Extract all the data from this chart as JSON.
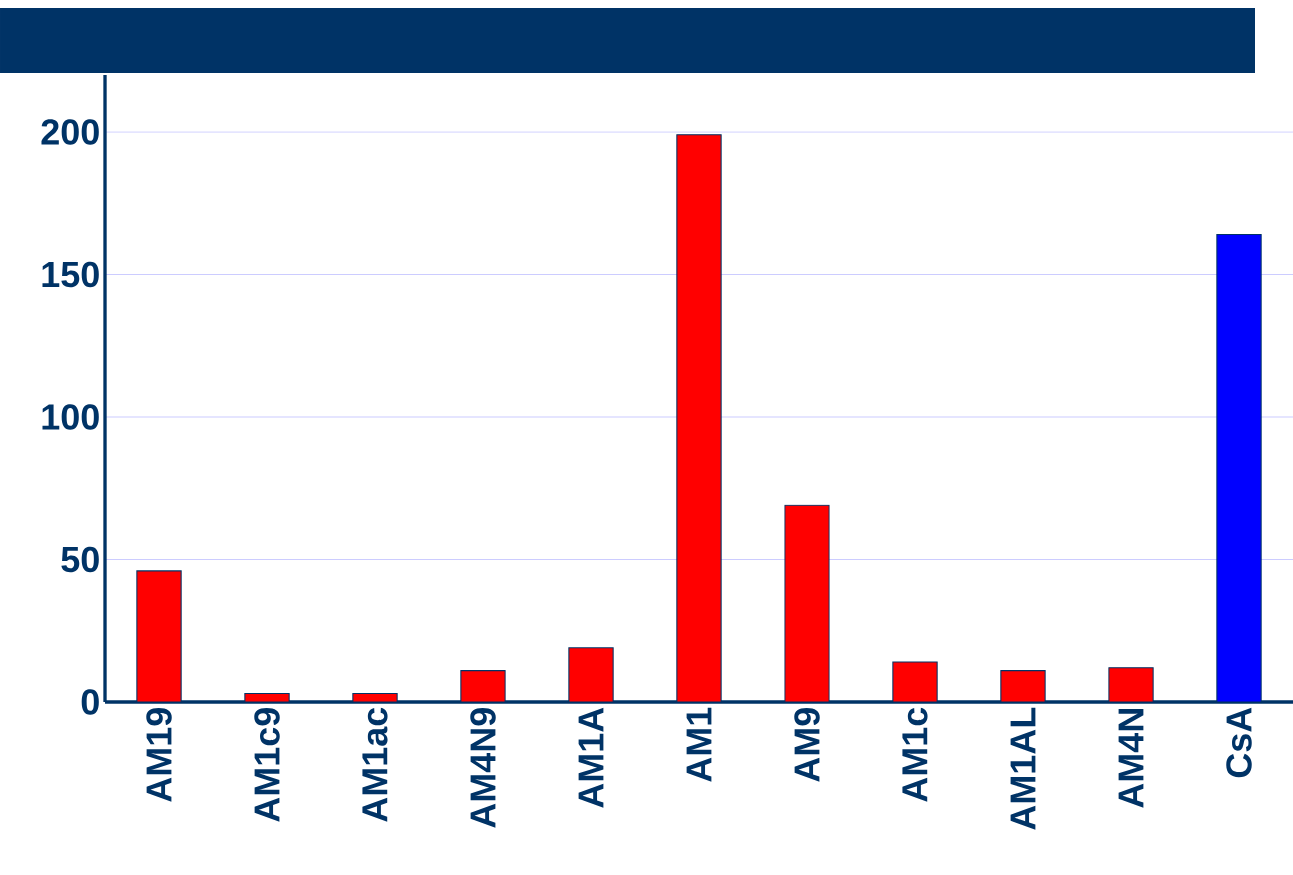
{
  "chart_data": {
    "type": "bar",
    "categories": [
      "AM19",
      "AM1c9",
      "AM1ac",
      "AM4N9",
      "AM1A",
      "AM1",
      "AM9",
      "AM1c",
      "AM1AL",
      "AM4N",
      "CsA"
    ],
    "values": [
      46,
      3,
      3,
      11,
      19,
      199,
      69,
      14,
      11,
      12,
      164
    ],
    "colors": [
      "#ff0000",
      "#ff0000",
      "#ff0000",
      "#ff0000",
      "#ff0000",
      "#ff0000",
      "#ff0000",
      "#ff0000",
      "#ff0000",
      "#ff0000",
      "#0000ff"
    ],
    "ylim": [
      0,
      220
    ],
    "yticks": [
      0,
      50,
      100,
      150,
      200
    ],
    "grid": "y"
  }
}
